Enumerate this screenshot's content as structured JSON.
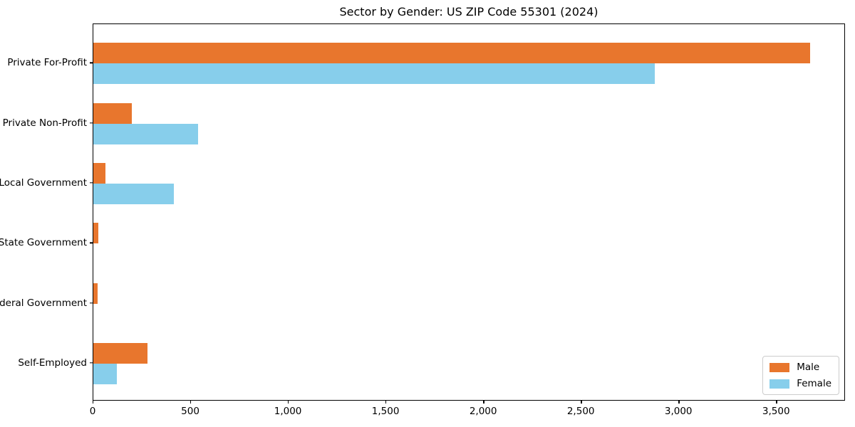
{
  "chart_data": {
    "type": "bar",
    "orientation": "horizontal",
    "title": "Sector by Gender: US ZIP Code 55301 (2024)",
    "categories": [
      "Private For-Profit",
      "Private Non-Profit",
      "Local Government",
      "State Government",
      "Federal Government",
      "Self-Employed"
    ],
    "series": [
      {
        "name": "Male",
        "color": "#e8762d",
        "values": [
          3670,
          197,
          61,
          25,
          21,
          277
        ]
      },
      {
        "name": "Female",
        "color": "#87ceeb",
        "values": [
          2875,
          535,
          411,
          0,
          0,
          122
        ]
      }
    ],
    "xlabel": "",
    "ylabel": "",
    "xlim": [
      0,
      3853
    ],
    "xticks": [
      0,
      500,
      1000,
      1500,
      2000,
      2500,
      3000,
      3500
    ],
    "xtick_labels": [
      "0",
      "500",
      "1,000",
      "1,500",
      "2,000",
      "2,500",
      "3,000",
      "3,500"
    ],
    "grid": false,
    "legend_position": "lower right",
    "background_color": "#ffffff",
    "text_color": "#000000"
  }
}
